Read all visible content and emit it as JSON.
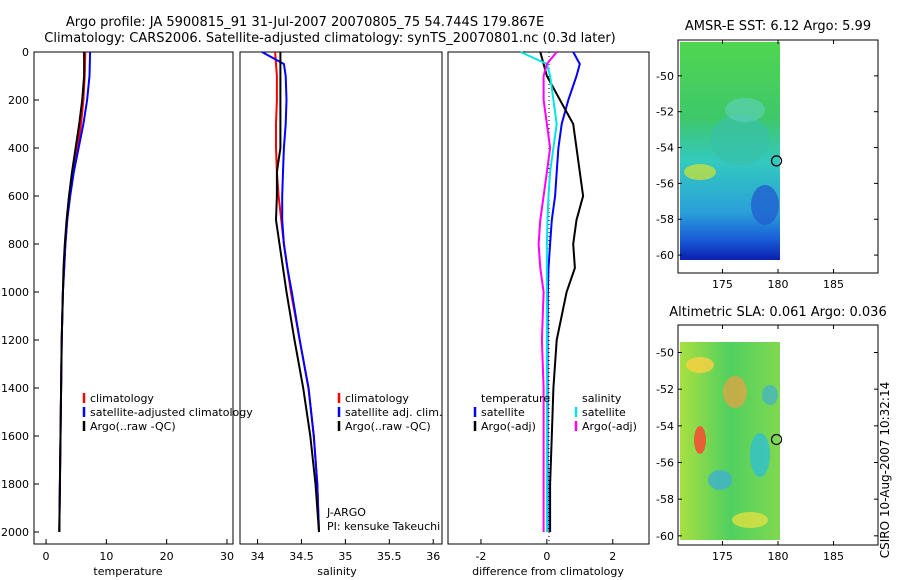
{
  "header": {
    "title_line1": "Argo profile: JA 5900815_91 31-Jul-2007 20070805_75 54.744S 179.867E",
    "title_line2": "Climatology: CARS2006. Satellite-adjusted climatology: synTS_20070801.nc (0.3d later)"
  },
  "side_label": "CSIRO 10-Aug-2007 10:32:14",
  "colors": {
    "climatology": "#ff0000",
    "satellite": "#0000ff",
    "argo": "#000000",
    "sat_salinity": "#00e5e5",
    "argo_adj_salinity": "#ff00ff"
  },
  "chart_data": [
    {
      "type": "line",
      "id": "temperature",
      "xlabel": "temperature",
      "xlim": [
        -2,
        31
      ],
      "ylim": [
        2050,
        0
      ],
      "y_ticks": [
        0,
        200,
        400,
        600,
        800,
        1000,
        1200,
        1400,
        1600,
        1800,
        2000
      ],
      "x_ticks": [
        0,
        10,
        20,
        30
      ],
      "legend": [
        "climatology",
        "satellite-adjusted climatology",
        "Argo(..raw -QC)"
      ],
      "legend_position": "lower-left",
      "depth": [
        0,
        100,
        200,
        300,
        400,
        500,
        600,
        700,
        800,
        900,
        1000,
        1200,
        1400,
        1600,
        1800,
        2000
      ],
      "series": [
        {
          "name": "climatology",
          "values": [
            6.5,
            6.4,
            6.2,
            5.8,
            5.2,
            4.5,
            3.9,
            3.5,
            3.2,
            3.0,
            2.8,
            2.6,
            2.5,
            2.4,
            2.3,
            2.2
          ]
        },
        {
          "name": "satellite-adjusted climatology",
          "values": [
            7.3,
            7.2,
            6.8,
            6.2,
            5.4,
            4.6,
            4.0,
            3.5,
            3.2,
            3.0,
            2.8,
            2.6,
            2.5,
            2.4,
            2.3,
            2.2
          ]
        },
        {
          "name": "Argo(..raw -QC)",
          "values": [
            6.3,
            6.3,
            6.0,
            5.5,
            4.9,
            4.3,
            3.8,
            3.4,
            3.1,
            2.9,
            2.8,
            2.6,
            2.5,
            2.4,
            2.3,
            2.2
          ]
        }
      ]
    },
    {
      "type": "line",
      "id": "salinity",
      "xlabel": "salinity",
      "xlim": [
        33.8,
        36.1
      ],
      "ylim": [
        2050,
        0
      ],
      "x_ticks": [
        34,
        34.5,
        35,
        35.5,
        36
      ],
      "legend": [
        "climatology",
        "satellite adj. clim.",
        "Argo(..raw -QC)"
      ],
      "legend_position": "lower-right",
      "annotation": [
        "J-ARGO",
        "PI: kensuke Takeuchi"
      ],
      "depth": [
        0,
        50,
        100,
        200,
        300,
        400,
        500,
        600,
        700,
        800,
        900,
        1000,
        1200,
        1400,
        1600,
        1800,
        2000
      ],
      "series": [
        {
          "name": "climatology",
          "values": [
            34.2,
            34.21,
            34.22,
            34.22,
            34.21,
            34.21,
            34.22,
            34.24,
            34.27,
            34.3,
            34.34,
            34.38,
            34.48,
            34.58,
            34.64,
            34.68,
            34.7
          ]
        },
        {
          "name": "satellite adj. clim.",
          "values": [
            34.05,
            34.3,
            34.32,
            34.33,
            34.32,
            34.3,
            34.29,
            34.28,
            34.28,
            34.3,
            34.34,
            34.39,
            34.48,
            34.58,
            34.64,
            34.68,
            34.7
          ]
        },
        {
          "name": "Argo(..raw -QC)",
          "values": [
            34.26,
            34.26,
            34.26,
            34.26,
            34.26,
            34.26,
            34.22,
            34.22,
            34.21,
            34.25,
            34.29,
            34.33,
            34.42,
            34.52,
            34.6,
            34.66,
            34.7
          ]
        }
      ]
    },
    {
      "type": "line",
      "id": "difference",
      "xlabel": "difference from climatology",
      "xlim": [
        -3,
        3.1
      ],
      "ylim": [
        2050,
        0
      ],
      "x_ticks": [
        -2,
        0,
        2
      ],
      "legend_groups": [
        {
          "title": "temperature",
          "items": [
            "satellite",
            "Argo(-adj)"
          ]
        },
        {
          "title": "salinity",
          "items": [
            "satellite",
            "Argo(-adj)"
          ]
        }
      ],
      "depth": [
        0,
        50,
        100,
        200,
        300,
        400,
        500,
        600,
        700,
        800,
        900,
        1000,
        1200,
        1400,
        1600,
        1800,
        2000
      ],
      "series": [
        {
          "name": "temperature satellite",
          "values": [
            0.8,
            1.0,
            0.9,
            0.65,
            0.45,
            0.35,
            0.3,
            0.25,
            0.15,
            0.1,
            0.05,
            0.03,
            0.02,
            0.02,
            0.02,
            0.02,
            0.02
          ]
        },
        {
          "name": "temperature Argo(-adj)",
          "values": [
            -0.2,
            -0.1,
            0.0,
            0.4,
            0.8,
            0.9,
            1.0,
            1.1,
            0.9,
            0.8,
            0.85,
            0.6,
            0.3,
            0.2,
            0.15,
            0.1,
            0.1
          ]
        },
        {
          "name": "salinity satellite",
          "values": [
            -0.8,
            0.0,
            0.1,
            0.2,
            0.3,
            0.2,
            0.1,
            0.05,
            0.02,
            0.0,
            0.0,
            0.0,
            0.0,
            0.0,
            0.0,
            0.0,
            0.0
          ]
        },
        {
          "name": "salinity Argo(-adj)",
          "values": [
            0.3,
            0.0,
            -0.1,
            -0.1,
            0.0,
            0.1,
            0.0,
            -0.1,
            -0.2,
            -0.25,
            -0.2,
            -0.1,
            -0.15,
            -0.1,
            -0.1,
            -0.1,
            -0.1
          ]
        }
      ]
    },
    {
      "type": "heatmap",
      "id": "amsre-sst",
      "title": "AMSR-E SST: 6.12 Argo: 5.99",
      "xlim": [
        171,
        189
      ],
      "ylim": [
        -61,
        -48
      ],
      "x_ticks": [
        175,
        180,
        185
      ],
      "y_ticks": [
        -50,
        -52,
        -54,
        -56,
        -58,
        -60
      ],
      "argo_marker": {
        "lon": 179.867,
        "lat": -54.744
      }
    },
    {
      "type": "heatmap",
      "id": "altimetric-sla",
      "title": "Altimetric SLA: 0.061 Argo: 0.036",
      "xlim": [
        171,
        189
      ],
      "ylim": [
        -60.5,
        -48.5
      ],
      "x_ticks": [
        175,
        180,
        185
      ],
      "y_ticks": [
        -50,
        -52,
        -54,
        -56,
        -58,
        -60
      ],
      "argo_marker": {
        "lon": 179.867,
        "lat": -54.744
      }
    }
  ]
}
